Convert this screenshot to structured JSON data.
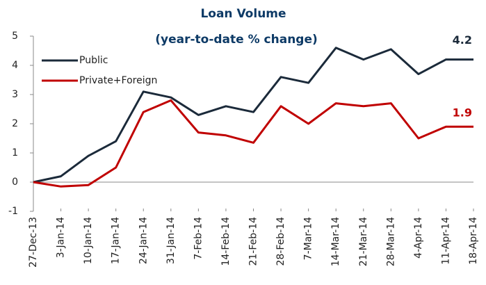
{
  "chart_data": {
    "type": "line",
    "title": "Loan Volume",
    "subtitle": "(year-to-date % change)",
    "categories": [
      "27-Dec-13",
      "3-Jan-14",
      "10-Jan-14",
      "17-Jan-14",
      "24-Jan-14",
      "31-Jan-14",
      "7-Feb-14",
      "14-Feb-14",
      "21-Feb-14",
      "28-Feb-14",
      "7-Mar-14",
      "14-Mar-14",
      "21-Mar-14",
      "28-Mar-14",
      "4-Apr-14",
      "11-Apr-14",
      "18-Apr-14"
    ],
    "series": [
      {
        "name": "Public",
        "color": "#1b2a3a",
        "values": [
          0,
          0.2,
          0.9,
          1.4,
          3.1,
          2.9,
          2.3,
          2.6,
          2.4,
          3.6,
          3.4,
          4.6,
          4.2,
          4.55,
          3.7,
          4.2,
          4.2
        ]
      },
      {
        "name": "Private+Foreign",
        "color": "#c00000",
        "values": [
          0,
          -0.15,
          -0.1,
          0.5,
          2.4,
          2.8,
          1.7,
          1.6,
          1.35,
          2.6,
          2.0,
          2.7,
          2.6,
          2.7,
          1.5,
          1.9,
          1.9
        ]
      }
    ],
    "ylim": [
      -1,
      5
    ],
    "yticks": [
      -1,
      0,
      1,
      2,
      3,
      4,
      5
    ],
    "grid": false,
    "legend": "top-left"
  }
}
